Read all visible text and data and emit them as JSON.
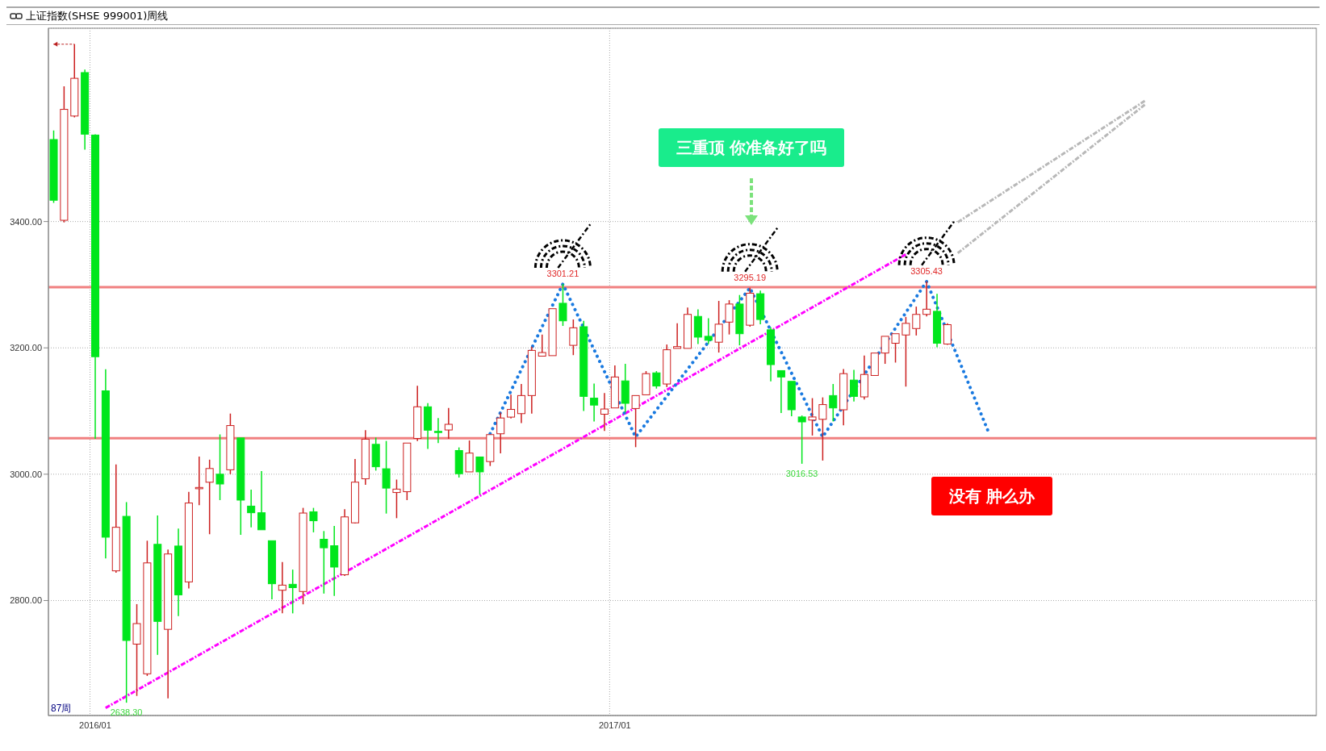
{
  "chart_data": {
    "type": "candlestick",
    "title": "上证指数(SHSE 999001)周线",
    "categories": [
      null,
      null,
      null,
      null,
      "2016/01",
      null,
      null,
      null,
      null,
      null,
      null,
      null,
      null,
      null,
      null,
      null,
      null,
      null,
      null,
      null,
      null,
      null,
      null,
      null,
      null,
      null,
      null,
      null,
      null,
      null,
      null,
      null,
      null,
      null,
      null,
      null,
      null,
      null,
      null,
      null,
      null,
      null,
      null,
      null,
      null,
      null,
      null,
      null,
      null,
      null,
      null,
      null,
      null,
      null,
      "2017/01",
      null,
      null,
      null,
      null,
      null,
      null,
      null,
      null,
      null,
      null,
      null,
      null,
      null,
      null,
      null,
      null,
      null,
      null,
      null,
      null,
      null,
      null,
      null,
      null,
      null,
      null,
      null,
      null,
      null,
      null,
      null,
      null,
      null,
      null,
      null,
      null,
      null,
      null,
      null,
      null,
      null,
      null,
      null,
      null,
      null,
      null,
      null,
      null,
      null,
      null,
      null,
      null,
      null,
      null,
      null,
      null,
      null,
      null,
      null,
      null,
      null,
      null,
      null,
      null,
      null,
      null,
      null
    ],
    "ohlc": [
      [
        3529.8,
        3544,
        3429.5,
        3433.7
      ],
      [
        3402,
        3614,
        3398.6,
        3577.6
      ],
      [
        3567,
        3680.7,
        3565,
        3626.7
      ],
      [
        3635.8,
        3640.7,
        3513.7,
        3538.3
      ],
      [
        3536.9,
        3538,
        3056,
        3186
      ],
      [
        3132,
        3166.3,
        2866.6,
        2900.3
      ],
      [
        2847,
        3015.4,
        2844,
        2916
      ],
      [
        2933.3,
        2955.8,
        2638.3,
        2736.8
      ],
      [
        2731,
        2794.3,
        2649,
        2763.5
      ],
      [
        2684,
        2894.7,
        2680.7,
        2859.6
      ],
      [
        2889,
        2934.7,
        2714,
        2767
      ],
      [
        2754.4,
        2880.7,
        2645,
        2873.7
      ],
      [
        2886.3,
        2914,
        2775.5,
        2809
      ],
      [
        2829.5,
        2972,
        2819,
        2954.4
      ],
      [
        2977,
        3028,
        2951,
        2979
      ],
      [
        2987.3,
        3023,
        2905,
        3009
      ],
      [
        3000,
        3063,
        2959,
        2984.5
      ],
      [
        3007,
        3096,
        3000,
        3077
      ],
      [
        3057.5,
        3057.5,
        2904,
        2959
      ],
      [
        2949.5,
        2975.4,
        2915.8,
        2939
      ],
      [
        2939,
        3005,
        2912,
        2912
      ],
      [
        2894.7,
        2894.7,
        2802,
        2826.6
      ],
      [
        2816.3,
        2861,
        2779.7,
        2824.4
      ],
      [
        2825.7,
        2849,
        2779.7,
        2820.4
      ],
      [
        2814.3,
        2946.7,
        2794,
        2938.5
      ],
      [
        2940.5,
        2946.7,
        2908,
        2926.3
      ],
      [
        2897,
        2910,
        2811,
        2883.5
      ],
      [
        2886.8,
        2918,
        2807.4,
        2853
      ],
      [
        2840.8,
        2944.6,
        2838.8,
        2932.4
      ],
      [
        2923,
        3024,
        2922,
        2987.4
      ],
      [
        2992.7,
        3069.7,
        2983.3,
        3055.4
      ],
      [
        3047.3,
        3058,
        3005.7,
        3011.8
      ],
      [
        3008.6,
        3052.6,
        2937.7,
        2978
      ],
      [
        2971,
        2991.5,
        2930.4,
        2976.4
      ],
      [
        2972.3,
        3049.3,
        2959,
        3049.3
      ],
      [
        3056.6,
        3140,
        3052.6,
        3106.7
      ],
      [
        3106.7,
        3112.4,
        3040,
        3069.7
      ],
      [
        3067.8,
        3089,
        3049.3,
        3066
      ],
      [
        3070,
        3104.7,
        3056,
        3079
      ],
      [
        3037.5,
        3042.4,
        2994.7,
        3000.8
      ],
      [
        3003.7,
        3053.4,
        3003.7,
        3033.4
      ],
      [
        3027.3,
        3027.3,
        2967.8,
        3003.7
      ],
      [
        3020,
        3062.7,
        3013,
        3062.7
      ],
      [
        3064,
        3097.4,
        3033,
        3089
      ],
      [
        3090.4,
        3126,
        3088.4,
        3102.6
      ],
      [
        3095.9,
        3142.8,
        3080.8,
        3124.5
      ],
      [
        3124.5,
        3202,
        3095.9,
        3196
      ],
      [
        3186.9,
        3221,
        3186.9,
        3192.6
      ],
      [
        3187.7,
        3262,
        3187.7,
        3262
      ],
      [
        3270.6,
        3301.21,
        3234.7,
        3242.8
      ],
      [
        3204,
        3245,
        3188.5,
        3231.8
      ],
      [
        3233.5,
        3242.8,
        3100,
        3123.2
      ],
      [
        3120.4,
        3143.6,
        3083.6,
        3109.4
      ],
      [
        3095,
        3128.5,
        3068.5,
        3103.2
      ],
      [
        3104.9,
        3172.2,
        3104.9,
        3153.9
      ],
      [
        3147.7,
        3174.7,
        3098,
        3112.2
      ],
      [
        3104,
        3124.5,
        3042.8,
        3124.5
      ],
      [
        3125.7,
        3163.2,
        3125.7,
        3159.2
      ],
      [
        3160.4,
        3163.2,
        3135.5,
        3139.6
      ],
      [
        3142.8,
        3205.3,
        3137.9,
        3197
      ],
      [
        3199.2,
        3238.8,
        3199.2,
        3202
      ],
      [
        3199.2,
        3264,
        3199.2,
        3253
      ],
      [
        3249.8,
        3261,
        3206,
        3217
      ],
      [
        3218.3,
        3247,
        3206,
        3212
      ],
      [
        3209,
        3274.3,
        3192.6,
        3237.5
      ],
      [
        3240.8,
        3275.5,
        3221.2,
        3269.4
      ],
      [
        3269.4,
        3283.7,
        3204,
        3222.4
      ],
      [
        3235.9,
        3295.19,
        3233.5,
        3286.5
      ],
      [
        3285.7,
        3290.6,
        3237.5,
        3244.9
      ],
      [
        3228.6,
        3232.6,
        3147,
        3173.5
      ],
      [
        3164,
        3164,
        3097,
        3153.9
      ],
      [
        3147,
        3147,
        3091.8,
        3102
      ],
      [
        3090.6,
        3093,
        3016.53,
        3082.8
      ],
      [
        3085.7,
        3120.4,
        3061.2,
        3090.6
      ],
      [
        3086.9,
        3121.6,
        3021.6,
        3110.2
      ],
      [
        3124.5,
        3142.8,
        3083.6,
        3104.9
      ],
      [
        3102,
        3166.5,
        3077.5,
        3159.2
      ],
      [
        3149,
        3165.3,
        3115,
        3123.2
      ],
      [
        3122.4,
        3187.7,
        3118.3,
        3157.9
      ],
      [
        3156.3,
        3191.8,
        3156.3,
        3191.8
      ],
      [
        3191.8,
        3218.3,
        3174.7,
        3218.3
      ],
      [
        3207.3,
        3222.4,
        3176.7,
        3222.4
      ],
      [
        3220.4,
        3249,
        3138.7,
        3238.8
      ],
      [
        3230.6,
        3265.3,
        3219.6,
        3253
      ],
      [
        3253,
        3305.43,
        3249.8,
        3261.2
      ],
      [
        3257.9,
        3285.7,
        3200.8,
        3207.3
      ],
      [
        3206.1,
        3238.8,
        3204.9,
        3236.7
      ],
      null,
      null,
      null,
      null,
      null,
      null,
      null,
      null,
      null,
      null,
      null,
      null,
      null,
      null,
      null,
      null,
      null,
      null,
      null,
      null,
      null,
      null,
      null,
      null,
      null,
      null,
      null,
      null,
      null,
      null,
      null,
      null,
      null,
      null,
      null
    ],
    "series": [
      {
        "type": "line",
        "color": "#ff00ff",
        "line_style": "dashed",
        "values": [
          null,
          null,
          null,
          null,
          null,
          2630,
          null,
          null,
          null,
          null,
          null,
          null,
          null,
          null,
          null,
          null,
          null,
          null,
          null,
          null,
          null,
          null,
          null,
          null,
          null,
          null,
          null,
          null,
          null,
          null,
          null,
          null,
          null,
          null,
          null,
          null,
          null,
          null,
          null,
          null,
          null,
          null,
          null,
          null,
          null,
          null,
          null,
          null,
          null,
          null,
          null,
          null,
          null,
          null,
          null,
          null,
          null,
          null,
          null,
          null,
          null,
          null,
          null,
          null,
          null,
          null,
          null,
          null,
          null,
          null,
          null,
          null,
          null,
          null,
          null,
          null,
          null,
          null,
          null,
          null,
          null,
          null,
          3348,
          null,
          null,
          null,
          null,
          null,
          null,
          null,
          null,
          null,
          null,
          null,
          null,
          null,
          null,
          null,
          null,
          null,
          null,
          null,
          null,
          null,
          null,
          null,
          null,
          null,
          null,
          null,
          null,
          null,
          null,
          null,
          null,
          null,
          null,
          null,
          null,
          null,
          null,
          null
        ]
      },
      {
        "type": "line",
        "color": "#1a7ae0",
        "line_style": "dotted",
        "values": [
          null,
          null,
          null,
          null,
          null,
          null,
          null,
          null,
          null,
          null,
          null,
          null,
          null,
          null,
          null,
          null,
          null,
          null,
          null,
          null,
          null,
          null,
          null,
          null,
          null,
          null,
          null,
          null,
          null,
          null,
          null,
          null,
          null,
          null,
          null,
          null,
          null,
          null,
          null,
          null,
          null,
          null,
          3064,
          null,
          null,
          null,
          null,
          null,
          null,
          3301,
          null,
          null,
          null,
          null,
          null,
          null,
          3059,
          null,
          null,
          null,
          null,
          null,
          null,
          null,
          null,
          null,
          null,
          3295,
          null,
          null,
          null,
          null,
          null,
          null,
          3059,
          null,
          null,
          null,
          null,
          null,
          null,
          null,
          null,
          null,
          3305,
          null,
          null,
          null,
          null,
          null,
          3065,
          null,
          null,
          null,
          null,
          null,
          null,
          null,
          null,
          null,
          null,
          null,
          null,
          null,
          null,
          null,
          null,
          null,
          null,
          null,
          null,
          null,
          null,
          null,
          null,
          null,
          null,
          null,
          null,
          null,
          null,
          null
        ]
      },
      {
        "type": "line",
        "color": "#b8b8b8",
        "line_style": "dashed",
        "values": [
          null,
          null,
          null,
          null,
          null,
          null,
          null,
          null,
          null,
          null,
          null,
          null,
          null,
          null,
          null,
          null,
          null,
          null,
          null,
          null,
          null,
          null,
          null,
          null,
          null,
          null,
          null,
          null,
          null,
          null,
          null,
          null,
          null,
          null,
          null,
          null,
          null,
          null,
          null,
          null,
          null,
          null,
          null,
          null,
          null,
          null,
          null,
          null,
          null,
          null,
          null,
          null,
          null,
          null,
          null,
          null,
          null,
          null,
          null,
          null,
          null,
          null,
          null,
          null,
          null,
          null,
          null,
          null,
          null,
          null,
          null,
          null,
          null,
          null,
          null,
          null,
          null,
          null,
          null,
          null,
          null,
          null,
          null,
          null,
          null,
          null,
          null,
          3399,
          null,
          null,
          null,
          null,
          null,
          null,
          null,
          null,
          null,
          null,
          null,
          null,
          null,
          null,
          null,
          null,
          null,
          3591,
          null,
          null,
          null,
          null,
          null,
          null,
          null,
          null,
          null,
          null,
          null,
          null,
          null,
          null,
          null,
          null
        ]
      },
      {
        "type": "line",
        "color": "#b8b8b8",
        "line_style": "dashed",
        "values": [
          null,
          null,
          null,
          null,
          null,
          null,
          null,
          null,
          null,
          null,
          null,
          null,
          null,
          null,
          null,
          null,
          null,
          null,
          null,
          null,
          null,
          null,
          null,
          null,
          null,
          null,
          null,
          null,
          null,
          null,
          null,
          null,
          null,
          null,
          null,
          null,
          null,
          null,
          null,
          null,
          null,
          null,
          null,
          null,
          null,
          null,
          null,
          null,
          null,
          null,
          null,
          null,
          null,
          null,
          null,
          null,
          null,
          null,
          null,
          null,
          null,
          null,
          null,
          null,
          null,
          null,
          null,
          null,
          null,
          null,
          null,
          null,
          null,
          null,
          null,
          null,
          null,
          null,
          null,
          null,
          null,
          null,
          null,
          null,
          null,
          null,
          null,
          3350,
          null,
          null,
          null,
          null,
          null,
          null,
          null,
          null,
          null,
          null,
          null,
          null,
          null,
          null,
          null,
          null,
          null,
          3585,
          null,
          null,
          null,
          null,
          null,
          null,
          null,
          null,
          null,
          null,
          null,
          null,
          null,
          null,
          null,
          null
        ]
      }
    ],
    "ylim": [
      2618,
      3706
    ],
    "yticks": [
      {
        "value": 2800,
        "label": "2800.00"
      },
      {
        "value": 3000,
        "label": "3000.00"
      },
      {
        "value": 3200,
        "label": "3200.00"
      },
      {
        "value": 3400,
        "label": "3400.00"
      }
    ],
    "grid": true,
    "ref_lines": [
      {
        "axis": "y",
        "value": 3296,
        "color": "#f08080"
      },
      {
        "axis": "y",
        "value": 3057,
        "color": "#f08080"
      }
    ],
    "annotations": [
      "三重顶 你准备好了吗",
      "没有 肿么办",
      "87周",
      {
        "text": "3301.21",
        "y": 3301.21
      },
      {
        "text": "3295.19",
        "y": 3295.19
      },
      {
        "text": "3305.43",
        "y": 3305.43
      },
      {
        "text": "3016.53",
        "y": 3016.53
      },
      {
        "text": "2638.30",
        "y": 2638.3
      }
    ]
  }
}
